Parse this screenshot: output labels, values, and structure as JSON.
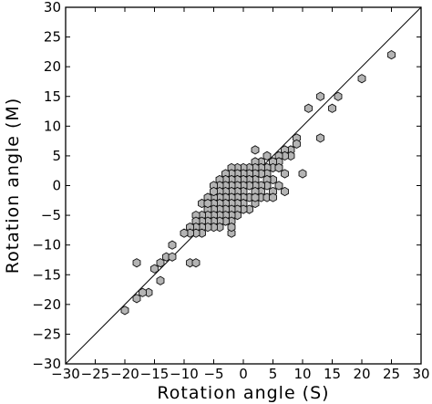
{
  "chart_data": {
    "type": "scatter",
    "title": "",
    "xlabel": "Rotation angle (S)",
    "ylabel": "Rotation angle (M)",
    "xlim": [
      -30,
      30
    ],
    "ylim": [
      -30,
      30
    ],
    "xticks": [
      -30,
      -25,
      -20,
      -15,
      -10,
      -5,
      0,
      5,
      10,
      15,
      20,
      25,
      30
    ],
    "yticks": [
      -30,
      -25,
      -20,
      -15,
      -10,
      -5,
      0,
      5,
      10,
      15,
      20,
      25,
      30
    ],
    "grid": false,
    "reference_line": {
      "from": [
        -30,
        -30
      ],
      "to": [
        30,
        30
      ]
    },
    "marker": "hexagon",
    "marker_color": "#b4b4b4",
    "points": [
      [
        25,
        22
      ],
      [
        20,
        18
      ],
      [
        16,
        15
      ],
      [
        13,
        15
      ],
      [
        11,
        13
      ],
      [
        15,
        13
      ],
      [
        13,
        8
      ],
      [
        10,
        2
      ],
      [
        9,
        8
      ],
      [
        9,
        7
      ],
      [
        8,
        6
      ],
      [
        8,
        5
      ],
      [
        7,
        6
      ],
      [
        7,
        5
      ],
      [
        6,
        5
      ],
      [
        6,
        4
      ],
      [
        5,
        4
      ],
      [
        5,
        3
      ],
      [
        4,
        5
      ],
      [
        4,
        3
      ],
      [
        4,
        2
      ],
      [
        3,
        4
      ],
      [
        3,
        3
      ],
      [
        3,
        2
      ],
      [
        2,
        6
      ],
      [
        2,
        4
      ],
      [
        2,
        3
      ],
      [
        2,
        2
      ],
      [
        2,
        1
      ],
      [
        6,
        3
      ],
      [
        7,
        2
      ],
      [
        6,
        0
      ],
      [
        5,
        1
      ],
      [
        5,
        -1
      ],
      [
        4,
        1
      ],
      [
        4,
        0
      ],
      [
        3,
        0
      ],
      [
        3,
        -1
      ],
      [
        3,
        -2
      ],
      [
        2,
        0
      ],
      [
        2,
        -1
      ],
      [
        2,
        -3
      ],
      [
        1,
        3
      ],
      [
        1,
        2
      ],
      [
        1,
        1
      ],
      [
        1,
        0
      ],
      [
        1,
        -2
      ],
      [
        1,
        -4
      ],
      [
        0,
        3
      ],
      [
        0,
        2
      ],
      [
        0,
        1
      ],
      [
        0,
        0
      ],
      [
        0,
        -1
      ],
      [
        0,
        -2
      ],
      [
        0,
        -3
      ],
      [
        0,
        -4
      ],
      [
        -1,
        3
      ],
      [
        -1,
        2
      ],
      [
        -1,
        1
      ],
      [
        -1,
        0
      ],
      [
        -1,
        -1
      ],
      [
        -1,
        -2
      ],
      [
        -1,
        -3
      ],
      [
        -1,
        -4
      ],
      [
        -1,
        -5
      ],
      [
        -2,
        3
      ],
      [
        -2,
        2
      ],
      [
        -2,
        1
      ],
      [
        -2,
        0
      ],
      [
        -2,
        -1
      ],
      [
        -2,
        -2
      ],
      [
        -2,
        -3
      ],
      [
        -2,
        -4
      ],
      [
        -2,
        -5
      ],
      [
        -2,
        -6
      ],
      [
        -3,
        2
      ],
      [
        -3,
        1
      ],
      [
        -3,
        0
      ],
      [
        -3,
        -1
      ],
      [
        -3,
        -2
      ],
      [
        -3,
        -3
      ],
      [
        -3,
        -4
      ],
      [
        -3,
        -5
      ],
      [
        -3,
        -6
      ],
      [
        -4,
        1
      ],
      [
        -4,
        0
      ],
      [
        -4,
        -1
      ],
      [
        -4,
        -2
      ],
      [
        -4,
        -3
      ],
      [
        -4,
        -4
      ],
      [
        -4,
        -5
      ],
      [
        -4,
        -6
      ],
      [
        -4,
        -7
      ],
      [
        -5,
        0
      ],
      [
        -5,
        -2
      ],
      [
        -5,
        -3
      ],
      [
        -5,
        -4
      ],
      [
        -5,
        -5
      ],
      [
        -5,
        -6
      ],
      [
        -5,
        -7
      ],
      [
        -6,
        -2
      ],
      [
        -6,
        -4
      ],
      [
        -6,
        -5
      ],
      [
        -6,
        -6
      ],
      [
        -6,
        -7
      ],
      [
        -7,
        -3
      ],
      [
        -7,
        -5
      ],
      [
        -7,
        -6
      ],
      [
        -7,
        -7
      ],
      [
        -7,
        -8
      ],
      [
        -8,
        -5
      ],
      [
        -8,
        -6
      ],
      [
        -8,
        -7
      ],
      [
        -8,
        -8
      ],
      [
        -9,
        -7
      ],
      [
        -9,
        -8
      ],
      [
        -10,
        -8
      ],
      [
        -5,
        -1
      ],
      [
        -6,
        -3
      ],
      [
        -2,
        -8
      ],
      [
        -2,
        -7
      ],
      [
        2,
        -2
      ],
      [
        4,
        -2
      ],
      [
        5,
        -2
      ],
      [
        7,
        -1
      ],
      [
        -12,
        -10
      ],
      [
        -13,
        -12
      ],
      [
        -12,
        -12
      ],
      [
        -15,
        -14
      ],
      [
        -14,
        -13
      ],
      [
        -9,
        -13
      ],
      [
        -8,
        -13
      ],
      [
        -14,
        -16
      ],
      [
        -16,
        -18
      ],
      [
        -18,
        -13
      ],
      [
        -17,
        -18
      ],
      [
        -18,
        -19
      ],
      [
        -20,
        -21
      ]
    ]
  }
}
